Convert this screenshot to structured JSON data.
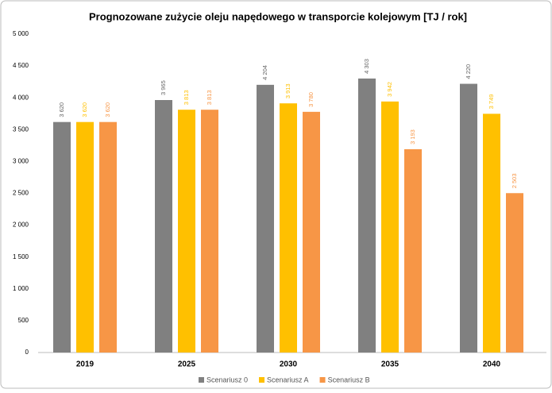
{
  "chart_data": {
    "type": "bar",
    "title": "Prognozowane zużycie oleju napędowego w transporcie kolejowym [TJ / rok]",
    "categories": [
      "2019",
      "2025",
      "2030",
      "2035",
      "2040"
    ],
    "series": [
      {
        "name": "Scenariusz 0",
        "color": "#808080",
        "values": [
          3620,
          3965,
          4204,
          4303,
          4220
        ],
        "value_labels": [
          "3 620",
          "3 965",
          "4 204",
          "4 303",
          "4 220"
        ]
      },
      {
        "name": "Scenariusz A",
        "color": "#ffc000",
        "values": [
          3620,
          3813,
          3913,
          3942,
          3749
        ],
        "value_labels": [
          "3 620",
          "3 813",
          "3 913",
          "3 942",
          "3 749"
        ]
      },
      {
        "name": "Scenariusz B",
        "color": "#f79646",
        "values": [
          3620,
          3813,
          3780,
          3193,
          2503
        ],
        "value_labels": [
          "3 620",
          "3 813",
          "3 780",
          "3 193",
          "2 503"
        ]
      }
    ],
    "ylim": [
      0,
      5000
    ],
    "yticks": [
      0,
      500,
      {
        "value": 1000,
        "label": "1 000"
      },
      {
        "value": 1500,
        "label": "1 500"
      },
      {
        "value": 2000,
        "label": "2 000"
      },
      {
        "value": 2500,
        "label": "2 500"
      },
      {
        "value": 3000,
        "label": "3 000"
      },
      {
        "value": 3500,
        "label": "3 500"
      },
      {
        "value": 4000,
        "label": "4 000"
      },
      {
        "value": 4500,
        "label": "4 500"
      },
      {
        "value": 5000,
        "label": "5 000"
      }
    ],
    "grid": false,
    "legend": "bottom"
  }
}
